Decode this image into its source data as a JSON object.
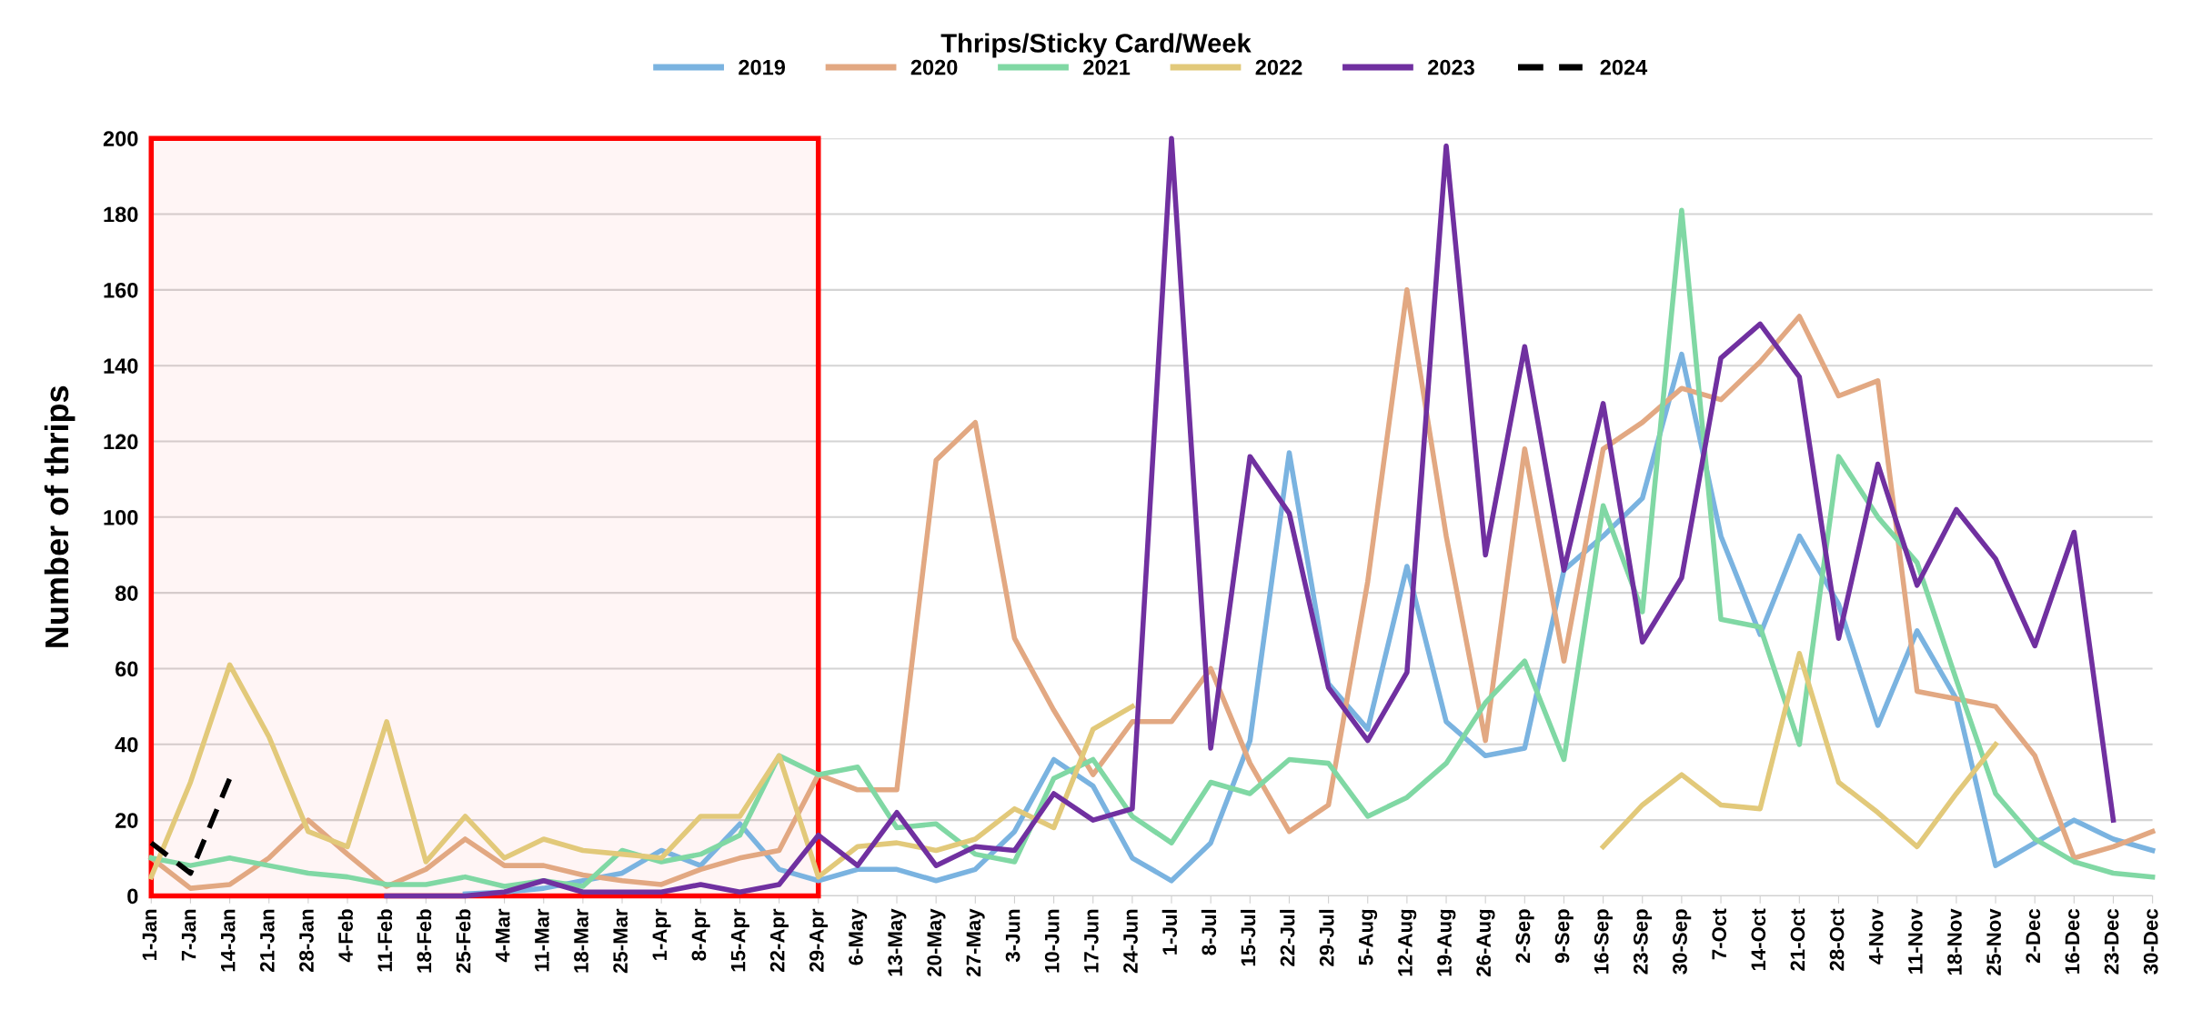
{
  "chart_data": {
    "type": "line",
    "title": "Thrips/Sticky Card/Week",
    "ylabel": "Number of thrips",
    "categories": [
      "1-Jan",
      "7-Jan",
      "14-Jan",
      "21-Jan",
      "28-Jan",
      "4-Feb",
      "11-Feb",
      "18-Feb",
      "25-Feb",
      "4-Mar",
      "11-Mar",
      "18-Mar",
      "25-Mar",
      "1-Apr",
      "8-Apr",
      "15-Apr",
      "22-Apr",
      "29-Apr",
      "6-May",
      "13-May",
      "20-May",
      "27-May",
      "3-Jun",
      "10-Jun",
      "17-Jun",
      "24-Jun",
      "1-Jul",
      "8-Jul",
      "15-Jul",
      "22-Jul",
      "29-Jul",
      "5-Aug",
      "12-Aug",
      "19-Aug",
      "26-Aug",
      "2-Sep",
      "9-Sep",
      "16-Sep",
      "23-Sep",
      "30-Sep",
      "7-Oct",
      "14-Oct",
      "21-Oct",
      "28-Oct",
      "4-Nov",
      "11-Nov",
      "18-Nov",
      "25-Nov",
      "2-Dec",
      "16-Dec",
      "23-Dec",
      "30-Dec"
    ],
    "series": [
      {
        "name": "2019",
        "color": "#7ab3e0",
        "values": [
          null,
          null,
          null,
          null,
          null,
          null,
          null,
          null,
          0.5,
          1,
          2,
          4,
          6,
          12,
          8,
          19,
          7,
          4,
          7,
          7,
          4,
          7,
          17,
          36,
          29,
          10,
          4,
          14,
          41,
          117,
          56,
          44,
          87,
          46,
          37,
          39,
          86,
          95,
          105,
          143,
          95,
          69,
          95,
          77,
          45,
          70,
          52,
          8,
          14,
          20,
          15,
          12
        ]
      },
      {
        "name": "2020",
        "color": "#e2a882",
        "values": [
          10,
          2,
          3,
          10,
          20,
          11,
          2.5,
          7,
          15,
          8,
          8,
          5.5,
          4,
          3,
          7,
          10,
          12,
          32,
          28,
          28,
          115,
          125,
          68,
          49,
          32,
          46,
          46,
          60,
          35,
          17,
          24,
          83,
          160,
          95,
          41,
          118,
          62,
          118,
          125,
          134,
          131,
          141,
          153,
          132,
          136,
          54,
          52,
          50,
          37,
          10,
          13,
          17
        ]
      },
      {
        "name": "2021",
        "color": "#80d8a4",
        "values": [
          10,
          8,
          10,
          8,
          6,
          5,
          3,
          3,
          5,
          2.5,
          4,
          2.5,
          12,
          9,
          11,
          16,
          37,
          32,
          34,
          18,
          19,
          11,
          9,
          31,
          36,
          21,
          14,
          30,
          27,
          36,
          35,
          21,
          26,
          35,
          51,
          62,
          36,
          103,
          75,
          181,
          73,
          71,
          40,
          116,
          100,
          88,
          57,
          27,
          15,
          9,
          6,
          5
        ]
      },
      {
        "name": "2022",
        "color": "#e2c97a",
        "values": [
          5,
          30,
          61,
          42,
          17,
          13,
          46,
          9,
          21,
          10,
          15,
          12,
          11,
          10,
          21,
          21,
          37,
          5,
          13,
          14,
          12,
          15,
          23,
          18,
          44,
          50,
          null,
          null,
          null,
          null,
          null,
          null,
          null,
          null,
          null,
          null,
          null,
          13,
          24,
          32,
          24,
          23,
          64,
          30,
          22,
          13,
          27,
          40,
          null,
          null,
          null,
          null
        ]
      },
      {
        "name": "2023",
        "color": "#7030a0",
        "values": [
          null,
          null,
          null,
          null,
          null,
          null,
          0,
          0,
          0,
          1,
          4,
          1,
          1,
          1,
          3,
          1,
          3,
          16,
          8,
          22,
          8,
          13,
          12,
          27,
          20,
          23,
          200,
          39,
          116,
          101,
          55,
          41,
          59,
          198,
          90,
          145,
          86,
          130,
          67,
          84,
          142,
          151,
          137,
          68,
          114,
          82,
          102,
          89,
          66,
          96,
          20,
          null
        ]
      },
      {
        "name": "2024",
        "color": "#000000",
        "line_style": "dashed",
        "values": [
          14,
          6,
          31,
          null,
          null,
          null,
          null,
          null,
          null,
          null,
          null,
          null,
          null,
          null,
          null,
          null,
          null,
          null,
          null,
          null,
          null,
          null,
          null,
          null,
          null,
          null,
          null,
          null,
          null,
          null,
          null,
          null,
          null,
          null,
          null,
          null,
          null,
          null,
          null,
          null,
          null,
          null,
          null,
          null,
          null,
          null,
          null,
          null,
          null,
          null,
          null,
          null
        ]
      }
    ],
    "ylim": [
      0,
      200
    ],
    "yticks": [
      0,
      20,
      40,
      60,
      80,
      100,
      120,
      140,
      160,
      180,
      200
    ],
    "grid": "y",
    "legend": "top",
    "line_style": "solid",
    "bands": [
      {
        "axis": "x",
        "from": "1-Jan",
        "to": "29-Apr",
        "color": "#ff0000"
      }
    ]
  }
}
